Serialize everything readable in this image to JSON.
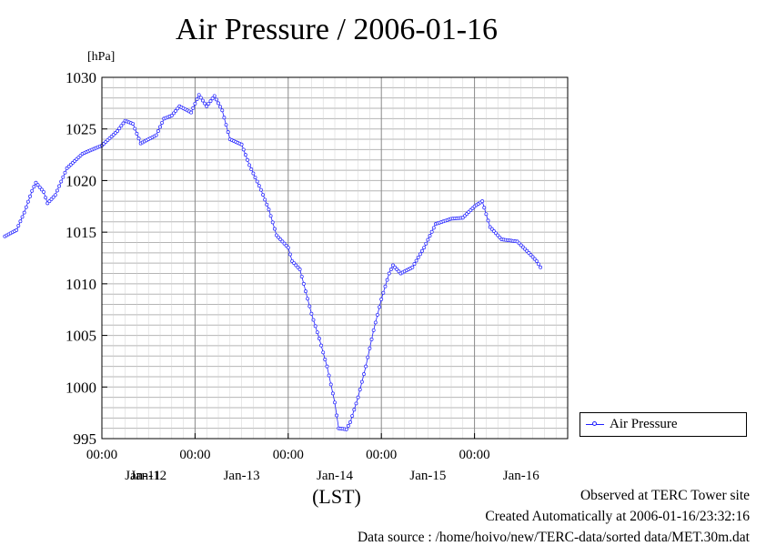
{
  "chart_data": {
    "type": "line",
    "title": "Air Pressure / 2006-01-16",
    "unit_label": "[hPa]",
    "xlabel": "(LST)",
    "ylim": [
      995,
      1030
    ],
    "yticks": [
      "1030",
      "1025",
      "1020",
      "1015",
      "1010",
      "1005",
      "1000",
      "995"
    ],
    "xlim_hours": [
      -120,
      0
    ],
    "time_ticks": [
      "00:00",
      "00:00",
      "00:00",
      "00:00",
      "00:00"
    ],
    "date_labels": [
      "Jan-11",
      "Jan-12",
      "Jan-13",
      "Jan-14",
      "Jan-15",
      "Jan-16"
    ],
    "grid": true,
    "legend_position": "right",
    "series": [
      {
        "name": "Air Pressure",
        "color": "#2020ff",
        "marker": "circle",
        "points": [
          [
            "2006-01-10 23:00",
            1014.6
          ],
          [
            "2006-01-11 02:00",
            1015.2
          ],
          [
            "2006-01-11 04:00",
            1016.9
          ],
          [
            "2006-01-11 06:00",
            1019.0
          ],
          [
            "2006-01-11 07:00",
            1019.8
          ],
          [
            "2006-01-11 09:00",
            1018.9
          ],
          [
            "2006-01-11 10:00",
            1017.8
          ],
          [
            "2006-01-11 12:00",
            1018.6
          ],
          [
            "2006-01-11 15:00",
            1021.2
          ],
          [
            "2006-01-11 19:00",
            1022.6
          ],
          [
            "2006-01-12 00:00",
            1023.4
          ],
          [
            "2006-01-12 04:00",
            1024.8
          ],
          [
            "2006-01-12 06:00",
            1025.8
          ],
          [
            "2006-01-12 08:00",
            1025.5
          ],
          [
            "2006-01-12 10:00",
            1023.6
          ],
          [
            "2006-01-12 14:00",
            1024.4
          ],
          [
            "2006-01-12 16:00",
            1026.0
          ],
          [
            "2006-01-12 18:00",
            1026.3
          ],
          [
            "2006-01-12 20:00",
            1027.2
          ],
          [
            "2006-01-12 23:00",
            1026.6
          ],
          [
            "2006-01-13 01:00",
            1028.3
          ],
          [
            "2006-01-13 03:00",
            1027.2
          ],
          [
            "2006-01-13 05:00",
            1028.2
          ],
          [
            "2006-01-13 07:00",
            1026.8
          ],
          [
            "2006-01-13 09:00",
            1024.0
          ],
          [
            "2006-01-13 12:00",
            1023.5
          ],
          [
            "2006-01-13 14:00",
            1021.5
          ],
          [
            "2006-01-13 17:00",
            1019.1
          ],
          [
            "2006-01-13 19:00",
            1017.2
          ],
          [
            "2006-01-13 21:00",
            1014.7
          ],
          [
            "2006-01-14 00:00",
            1013.5
          ],
          [
            "2006-01-14 01:00",
            1012.2
          ],
          [
            "2006-01-14 03:00",
            1011.4
          ],
          [
            "2006-01-14 04:00",
            1010.0
          ],
          [
            "2006-01-14 06:00",
            1007.1
          ],
          [
            "2006-01-14 08:00",
            1004.7
          ],
          [
            "2006-01-14 10:00",
            1002.0
          ],
          [
            "2006-01-14 12:00",
            998.5
          ],
          [
            "2006-01-14 13:00",
            996.0
          ],
          [
            "2006-01-14 15:00",
            995.9
          ],
          [
            "2006-01-14 16:00",
            996.6
          ],
          [
            "2006-01-14 18:00",
            999.0
          ],
          [
            "2006-01-14 20:00",
            1002.0
          ],
          [
            "2006-01-14 22:00",
            1005.5
          ],
          [
            "2006-01-15 00:00",
            1008.5
          ],
          [
            "2006-01-15 02:00",
            1011.0
          ],
          [
            "2006-01-15 03:00",
            1011.8
          ],
          [
            "2006-01-15 05:00",
            1011.0
          ],
          [
            "2006-01-15 08:00",
            1011.6
          ],
          [
            "2006-01-15 11:00",
            1013.5
          ],
          [
            "2006-01-15 14:00",
            1015.8
          ],
          [
            "2006-01-15 18:00",
            1016.3
          ],
          [
            "2006-01-15 21:00",
            1016.4
          ],
          [
            "2006-01-16 00:00",
            1017.5
          ],
          [
            "2006-01-16 02:00",
            1018.0
          ],
          [
            "2006-01-16 04:00",
            1015.5
          ],
          [
            "2006-01-16 07:00",
            1014.3
          ],
          [
            "2006-01-16 11:00",
            1014.1
          ],
          [
            "2006-01-16 14:00",
            1013.0
          ],
          [
            "2006-01-16 16:00",
            1012.2
          ],
          [
            "2006-01-16 17:00",
            1011.6
          ]
        ]
      }
    ]
  },
  "footer": {
    "line1": "Observed at TERC Tower site",
    "line2": "Created Automatically at 2006-01-16/23:32:16",
    "line3": "Data source : /home/hoivo/new/TERC-data/sorted  data/MET.30m.dat"
  }
}
